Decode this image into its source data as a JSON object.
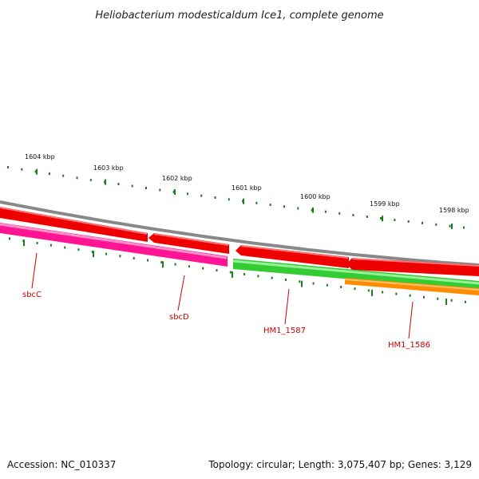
{
  "title": "Heliobacterium modesticaldum Ice1, complete genome",
  "footer": {
    "accession": "Accession: NC_010337",
    "stats": "Topology: circular; Length: 3,075,407 bp; Genes: 3,129"
  },
  "ticks": {
    "major_labels": [
      "1604 kbp",
      "1603 kbp",
      "1602 kbp",
      "1601 kbp",
      "1600 kbp",
      "1599 kbp",
      "1598 kbp"
    ],
    "color": "#1a7f1a"
  },
  "genes": [
    {
      "label": "sbcC",
      "color": "#ff1493",
      "label_color": "#cc0000"
    },
    {
      "label": "sbcD",
      "color": "#ff1493",
      "label_color": "#cc0000"
    },
    {
      "label": "HM1_1587",
      "color": "#33cc33",
      "label_color": "#cc0000"
    },
    {
      "label": "HM1_1586",
      "color": "#33cc33",
      "label_color": "#cc0000"
    }
  ],
  "colors": {
    "backbone": "#888888",
    "cds": "#ee0000",
    "gene_pink": "#ff1493",
    "gene_green": "#33cc33",
    "gene_orange": "#ff8c00"
  }
}
